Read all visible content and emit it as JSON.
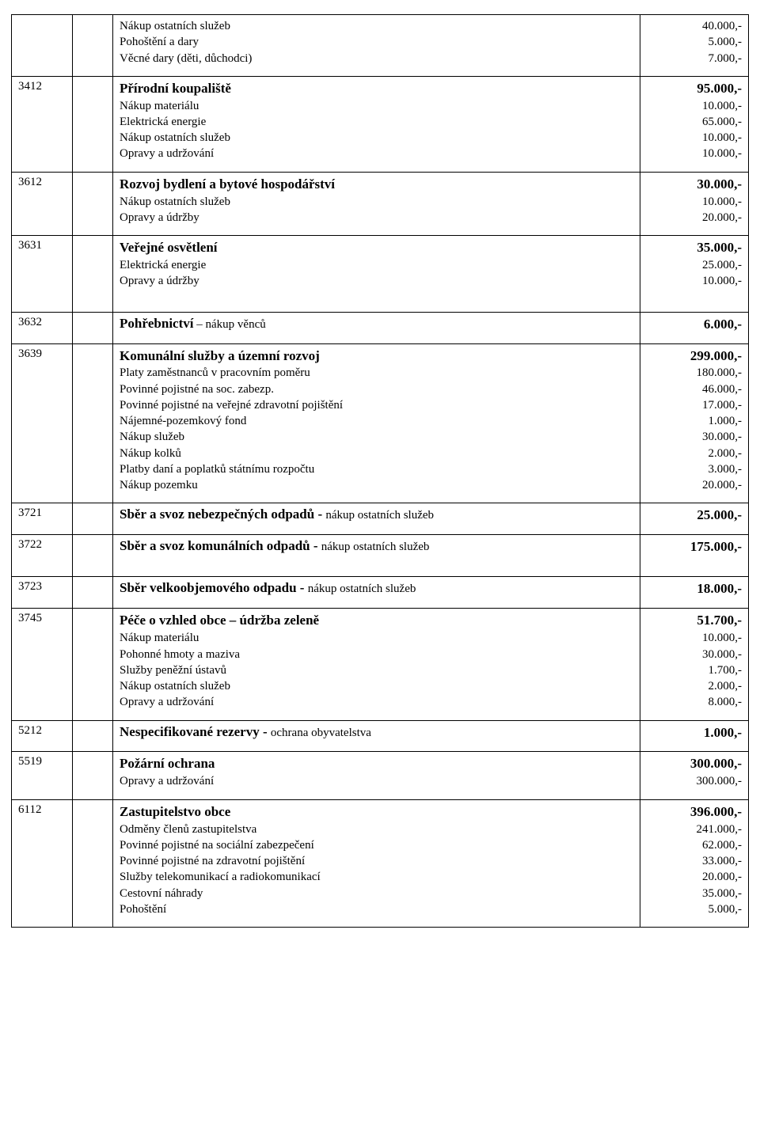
{
  "rows": [
    {
      "code": "",
      "lines": [
        {
          "text": "Nákup ostatních služeb",
          "bold": false,
          "value": "40.000,-",
          "value_bold": false
        },
        {
          "text": "Pohoštění a dary",
          "bold": false,
          "value": "5.000,-",
          "value_bold": false
        },
        {
          "text": "Věcné dary (děti, důchodci)",
          "bold": false,
          "value": "7.000,-",
          "value_bold": false
        }
      ]
    },
    {
      "code": "3412",
      "lines": [
        {
          "text": "Přírodní koupaliště",
          "bold": true,
          "value": "95.000,-",
          "value_bold": true
        },
        {
          "text": "Nákup materiálu",
          "bold": false,
          "value": "10.000,-",
          "value_bold": false
        },
        {
          "text": "Elektrická energie",
          "bold": false,
          "value": "65.000,-",
          "value_bold": false
        },
        {
          "text": "Nákup ostatních služeb",
          "bold": false,
          "value": "10.000,-",
          "value_bold": false
        },
        {
          "text": "Opravy a udržování",
          "bold": false,
          "value": "10.000,-",
          "value_bold": false
        }
      ]
    },
    {
      "code": "3612",
      "lines": [
        {
          "text": "Rozvoj bydlení a bytové hospodářství",
          "bold": true,
          "value": "30.000,-",
          "value_bold": true
        },
        {
          "text": "Nákup ostatních služeb",
          "bold": false,
          "value": "10.000,-",
          "value_bold": false
        },
        {
          "text": "Opravy a údržby",
          "bold": false,
          "value": "20.000,-",
          "value_bold": false
        }
      ]
    },
    {
      "code": "3631",
      "lines": [
        {
          "text": "Veřejné osvětlení",
          "bold": true,
          "value": "35.000,-",
          "value_bold": true
        },
        {
          "text": "Elektrická energie",
          "bold": false,
          "value": "25.000,-",
          "value_bold": false
        },
        {
          "text": "Opravy a údržby",
          "bold": false,
          "value": "10.000,-",
          "value_bold": false
        }
      ],
      "extra_pad": true
    },
    {
      "code": "3632",
      "lines": [
        {
          "text": "Pohřebnictví",
          "bold": true,
          "suffix": " – nákup věnců",
          "value": "6.000,-",
          "value_bold": true
        }
      ]
    },
    {
      "code": "3639",
      "lines": [
        {
          "text": "Komunální služby a územní rozvoj",
          "bold": true,
          "value": "299.000,-",
          "value_bold": true
        },
        {
          "text": "Platy zaměstnanců v pracovním poměru",
          "bold": false,
          "value": "180.000,-",
          "value_bold": false
        },
        {
          "text": "Povinné pojistné na soc. zabezp.",
          "bold": false,
          "value": "46.000,-",
          "value_bold": false
        },
        {
          "text": "Povinné pojistné na veřejné zdravotní pojištění",
          "bold": false,
          "value": "17.000,-",
          "value_bold": false
        },
        {
          "text": "Nájemné-pozemkový fond",
          "bold": false,
          "value": "1.000,-",
          "value_bold": false
        },
        {
          "text": "Nákup služeb",
          "bold": false,
          "value": "30.000,-",
          "value_bold": false
        },
        {
          "text": "Nákup kolků",
          "bold": false,
          "value": "2.000,-",
          "value_bold": false
        },
        {
          "text": "Platby daní a poplatků státnímu rozpočtu",
          "bold": false,
          "value": "3.000,-",
          "value_bold": false
        },
        {
          "text": "Nákup pozemku",
          "bold": false,
          "value": "20.000,-",
          "value_bold": false
        }
      ]
    },
    {
      "code": "3721",
      "lines": [
        {
          "text": "Sběr a svoz nebezpečných odpadů - ",
          "bold": true,
          "suffix": "nákup ostatních služeb",
          "value": "25.000,-",
          "value_bold": true
        }
      ]
    },
    {
      "code": "3722",
      "lines": [
        {
          "text": "Sběr a svoz komunálních odpadů - ",
          "bold": true,
          "suffix": "nákup ostatních služeb",
          "value": "175.000,-",
          "value_bold": true
        }
      ],
      "extra_pad": true
    },
    {
      "code": "3723",
      "lines": [
        {
          "text": "Sběr velkoobjemového odpadu - ",
          "bold": true,
          "suffix": "nákup ostatních služeb",
          "value": "18.000,-",
          "value_bold": true
        }
      ]
    },
    {
      "code": "3745",
      "lines": [
        {
          "text": "Péče o vzhled obce – údržba zeleně",
          "bold": true,
          "value": "51.700,-",
          "value_bold": true
        },
        {
          "text": "Nákup materiálu",
          "bold": false,
          "value": "10.000,-",
          "value_bold": false
        },
        {
          "text": "Pohonné hmoty a maziva",
          "bold": false,
          "value": "30.000,-",
          "value_bold": false
        },
        {
          "text": "Služby peněžní ústavů",
          "bold": false,
          "value": "1.700,-",
          "value_bold": false
        },
        {
          "text": "Nákup ostatních služeb",
          "bold": false,
          "value": "2.000,-",
          "value_bold": false
        },
        {
          "text": "Opravy a udržování",
          "bold": false,
          "value": "8.000,-",
          "value_bold": false
        }
      ]
    },
    {
      "code": "5212",
      "lines": [
        {
          "text": "Nespecifikované rezervy - ",
          "bold": true,
          "suffix": "ochrana obyvatelstva",
          "value": "1.000,-",
          "value_bold": true
        }
      ]
    },
    {
      "code": "5519",
      "lines": [
        {
          "text": "Požární ochrana",
          "bold": true,
          "value": "300.000,-",
          "value_bold": true
        },
        {
          "text": "Opravy a udržování",
          "bold": false,
          "value": "300.000,-",
          "value_bold": false
        }
      ]
    },
    {
      "code": "6112",
      "lines": [
        {
          "text": "Zastupitelstvo obce",
          "bold": true,
          "value": "396.000,-",
          "value_bold": true
        },
        {
          "text": "Odměny členů zastupitelstva",
          "bold": false,
          "value": "241.000,-",
          "value_bold": false
        },
        {
          "text": "Povinné  pojistné na sociální zabezpečení",
          "bold": false,
          "value": "62.000,-",
          "value_bold": false
        },
        {
          "text": "Povinné pojistné na zdravotní pojištění",
          "bold": false,
          "value": "33.000,-",
          "value_bold": false
        },
        {
          "text": "Služby telekomunikací a radiokomunikací",
          "bold": false,
          "value": "20.000,-",
          "value_bold": false
        },
        {
          "text": "Cestovní náhrady",
          "bold": false,
          "value": "35.000,-",
          "value_bold": false
        },
        {
          "text": "Pohoštění",
          "bold": false,
          "value": "5.000,-",
          "value_bold": false
        }
      ]
    }
  ]
}
